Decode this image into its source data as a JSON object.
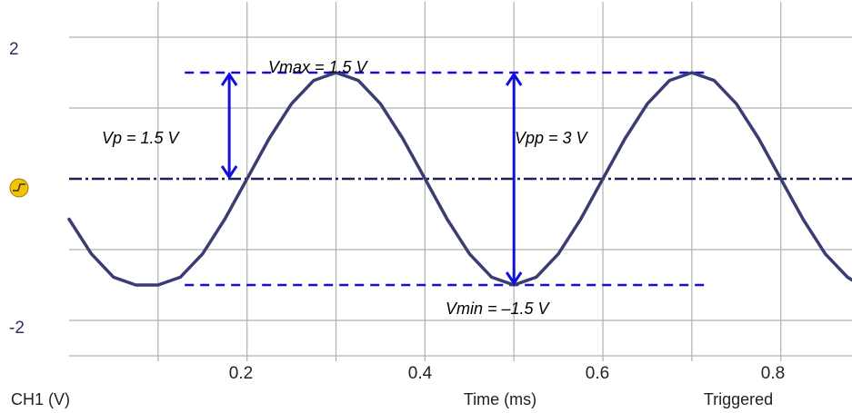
{
  "chart_data": {
    "type": "line",
    "channel_label": "CH1 (V)",
    "xlabel": "Time (ms)",
    "status": "Triggered",
    "xlim": [
      0,
      0.88
    ],
    "ylim": [
      -2.5,
      2.5
    ],
    "x_ticks": [
      0.2,
      0.4,
      0.6,
      0.8
    ],
    "y_ticks": [
      2,
      -2
    ],
    "grid": true,
    "colors": {
      "waveform": "#3a3d73",
      "grid": "#b0b0b0",
      "annotation": "#1010d8",
      "zero_line": "#1f2055",
      "trigger_marker": "#f2c300"
    },
    "series": [
      {
        "x": [
          0,
          0.025,
          0.05,
          0.075,
          0.1,
          0.125,
          0.15,
          0.175,
          0.2,
          0.225,
          0.25,
          0.275,
          0.3,
          0.325,
          0.35,
          0.375,
          0.4,
          0.425,
          0.45,
          0.475,
          0.5,
          0.525,
          0.55,
          0.575,
          0.6,
          0.625,
          0.65,
          0.675,
          0.7,
          0.725,
          0.75,
          0.775,
          0.8,
          0.825,
          0.85,
          0.875,
          0.88
        ],
        "y": [
          -0.57,
          -1.06,
          -1.39,
          -1.5,
          -1.5,
          -1.39,
          -1.06,
          -0.57,
          0,
          0.57,
          1.06,
          1.39,
          1.5,
          1.39,
          1.06,
          0.57,
          0,
          -0.57,
          -1.06,
          -1.39,
          -1.5,
          -1.39,
          -1.06,
          -0.57,
          0,
          0.57,
          1.06,
          1.39,
          1.5,
          1.39,
          1.06,
          0.57,
          0,
          -0.57,
          -1.06,
          -1.39,
          -1.43
        ]
      }
    ],
    "reference_lines": [
      {
        "y": 1.5,
        "x": [
          0.13,
          0.72
        ],
        "style": "dashed"
      },
      {
        "y": -1.5,
        "x": [
          0.13,
          0.72
        ],
        "style": "dashed"
      },
      {
        "y": 0,
        "x": [
          0,
          0.88
        ],
        "style": "dash-dot"
      }
    ],
    "arrows": [
      {
        "x": 0.18,
        "y_from": 1.5,
        "y_to": 0
      },
      {
        "x": 0.5,
        "y_from": 1.5,
        "y_to": -1.5
      }
    ],
    "annotations": {
      "vmax": "Vmax = 1.5 V",
      "vp": "Vp = 1.5 V",
      "vpp": "Vpp = 3 V",
      "vmin": "Vmin = –1.5 V"
    }
  }
}
